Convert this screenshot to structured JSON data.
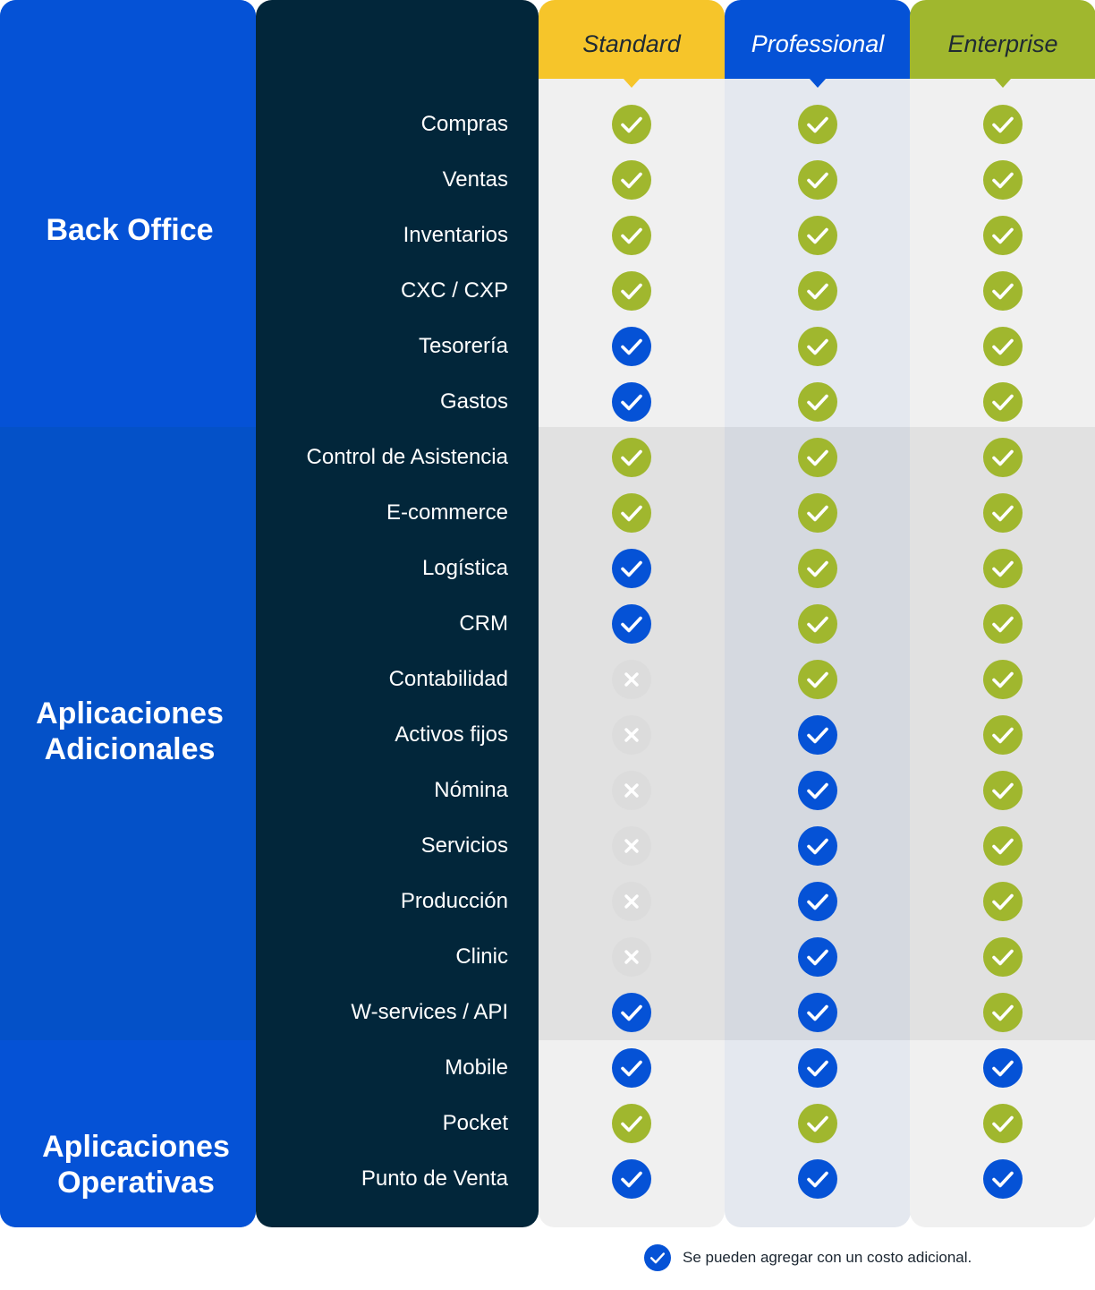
{
  "colors": {
    "category_bg": "#0552d6",
    "category_bg_dark": "#0451c8",
    "features_bg": "#02263a",
    "check_green": "#a0b72e",
    "check_blue": "#0552d6",
    "cross_gray": "#dcdcdc"
  },
  "categories": [
    {
      "label": "Back Office",
      "rows": 6
    },
    {
      "label": "Aplicaciones\nAdicionales",
      "rows": 11
    },
    {
      "label": "Aplicaciones\nOperativas",
      "rows": 3
    }
  ],
  "plans": [
    {
      "name": "Standard",
      "header_color": "#f6c52a",
      "text_color": "#1f2a33"
    },
    {
      "name": "Professional",
      "header_color": "#0552d6",
      "text_color": "#ffffff"
    },
    {
      "name": "Enterprise",
      "header_color": "#a0b72e",
      "text_color": "#1f2a33"
    }
  ],
  "features": [
    {
      "name": "Compras",
      "availability": [
        "included",
        "included",
        "included"
      ]
    },
    {
      "name": "Ventas",
      "availability": [
        "included",
        "included",
        "included"
      ]
    },
    {
      "name": "Inventarios",
      "availability": [
        "included",
        "included",
        "included"
      ]
    },
    {
      "name": "CXC / CXP",
      "availability": [
        "included",
        "included",
        "included"
      ]
    },
    {
      "name": "Tesorería",
      "availability": [
        "additional",
        "included",
        "included"
      ]
    },
    {
      "name": "Gastos",
      "availability": [
        "additional",
        "included",
        "included"
      ]
    },
    {
      "name": "Control de Asistencia",
      "availability": [
        "included",
        "included",
        "included"
      ]
    },
    {
      "name": "E-commerce",
      "availability": [
        "included",
        "included",
        "included"
      ]
    },
    {
      "name": "Logística",
      "availability": [
        "additional",
        "included",
        "included"
      ]
    },
    {
      "name": "CRM",
      "availability": [
        "additional",
        "included",
        "included"
      ]
    },
    {
      "name": "Contabilidad",
      "availability": [
        "not_available",
        "included",
        "included"
      ]
    },
    {
      "name": "Activos fijos",
      "availability": [
        "not_available",
        "additional",
        "included"
      ]
    },
    {
      "name": "Nómina",
      "availability": [
        "not_available",
        "additional",
        "included"
      ]
    },
    {
      "name": "Servicios",
      "availability": [
        "not_available",
        "additional",
        "included"
      ]
    },
    {
      "name": "Producción",
      "availability": [
        "not_available",
        "additional",
        "included"
      ]
    },
    {
      "name": "Clinic",
      "availability": [
        "not_available",
        "additional",
        "included"
      ]
    },
    {
      "name": "W-services / API",
      "availability": [
        "additional",
        "additional",
        "included"
      ]
    },
    {
      "name": "Mobile",
      "availability": [
        "additional",
        "additional",
        "additional"
      ]
    },
    {
      "name": "Pocket",
      "availability": [
        "included",
        "included",
        "included"
      ]
    },
    {
      "name": "Punto de Venta",
      "availability": [
        "additional",
        "additional",
        "additional"
      ]
    }
  ],
  "legend": {
    "icon": "check-blue-icon",
    "text": "Se pueden agregar con un costo adicional."
  }
}
